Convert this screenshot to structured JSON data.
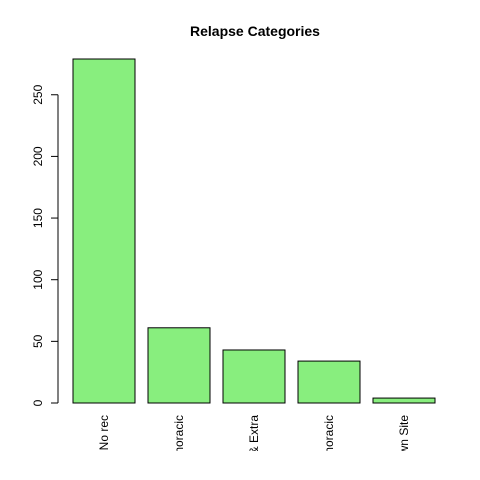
{
  "chart_data": {
    "type": "bar",
    "title": "Relapse Categories",
    "xlabel": "",
    "ylabel": "",
    "categories": [
      "No rec",
      "Intrathoracic",
      "Intra & Extra",
      "Extrathoracic",
      "Unknown Site"
    ],
    "values": [
      279,
      61,
      43,
      34,
      4
    ],
    "ylim": [
      0,
      279
    ],
    "yticks": [
      0,
      50,
      100,
      150,
      200,
      250
    ],
    "bar_color": "#88EE7E",
    "grid": false,
    "legend": "none"
  }
}
